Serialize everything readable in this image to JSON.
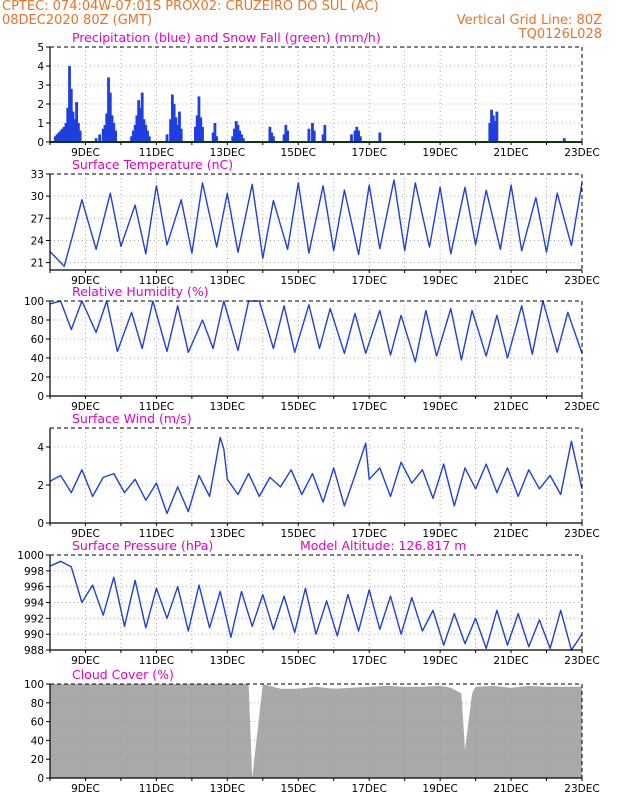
{
  "header": {
    "line1_left": "CPTEC:  074:04W-07:01S  PROX02: CRUZEIRO DO SUL (AC)",
    "line2_left": "08DEC2020 80Z (GMT)",
    "line2_right": "Vertical Grid Line: 80Z",
    "line3_right": "TQ0126L028"
  },
  "colors": {
    "header": "#e8732a",
    "title": "#e600c8",
    "line": "#1f3fe0",
    "snow": "#1a9a1a",
    "cloud": "#a9a9a9",
    "axis": "#000000",
    "grid": "#9a9a9a"
  },
  "x_axis": {
    "start_day": 8,
    "end_day": 23,
    "tick_labels": [
      "9DEC",
      "11DEC",
      "13DEC",
      "15DEC",
      "17DEC",
      "19DEC",
      "21DEC",
      "23DEC"
    ],
    "tick_days": [
      9,
      11,
      13,
      15,
      17,
      19,
      21,
      23
    ]
  },
  "chart_data": [
    {
      "type": "bar",
      "title": "Precipitation (blue) and Snow Fall (green) (mm/h)",
      "ylim": [
        0,
        5
      ],
      "yticks": [
        0,
        1,
        2,
        3,
        4,
        5
      ],
      "series": [
        {
          "name": "Precipitation",
          "x_day": [
            8.15,
            8.2,
            8.25,
            8.3,
            8.35,
            8.4,
            8.45,
            8.5,
            8.55,
            8.6,
            8.65,
            8.7,
            8.75,
            8.8,
            8.85,
            9.3,
            9.4,
            9.5,
            9.55,
            9.6,
            9.65,
            9.7,
            9.75,
            9.8,
            9.85,
            10.3,
            10.35,
            10.4,
            10.45,
            10.5,
            10.55,
            10.6,
            10.65,
            10.7,
            10.75,
            10.8,
            11.3,
            11.4,
            11.45,
            11.5,
            11.55,
            11.6,
            11.65,
            11.7,
            12.1,
            12.15,
            12.2,
            12.25,
            12.3,
            12.6,
            12.65,
            12.7,
            13.15,
            13.2,
            13.25,
            13.3,
            13.35,
            13.4,
            13.45,
            14.2,
            14.25,
            14.3,
            14.6,
            14.65,
            14.7,
            15.3,
            15.4,
            15.45,
            15.7,
            15.75,
            16.5,
            16.6,
            16.65,
            16.7,
            16.75,
            17.3,
            20.4,
            20.45,
            20.5,
            20.55,
            20.6,
            22.5
          ],
          "values": [
            0.3,
            0.4,
            0.5,
            0.6,
            0.7,
            0.8,
            1.0,
            1.8,
            4.0,
            2.8,
            1.6,
            1.2,
            2.1,
            1.0,
            0.6,
            0.2,
            0.4,
            0.7,
            0.9,
            1.5,
            3.4,
            2.6,
            1.4,
            1.0,
            0.6,
            0.3,
            0.6,
            0.9,
            1.4,
            2.2,
            1.8,
            2.6,
            1.2,
            0.9,
            0.6,
            0.3,
            0.4,
            1.2,
            2.5,
            2.0,
            1.3,
            0.9,
            1.6,
            0.7,
            0.8,
            1.4,
            2.4,
            1.3,
            0.8,
            0.5,
            1.0,
            0.3,
            0.3,
            0.7,
            1.1,
            0.9,
            0.6,
            0.4,
            0.2,
            0.8,
            0.5,
            0.3,
            0.4,
            0.9,
            0.6,
            0.7,
            1.0,
            0.6,
            0.4,
            0.9,
            0.4,
            0.6,
            0.8,
            0.6,
            0.3,
            0.5,
            1.0,
            1.7,
            1.4,
            1.1,
            1.6,
            0.2
          ]
        },
        {
          "name": "Snow Fall",
          "x_day": [
            8.0,
            23.0
          ],
          "values": [
            0,
            0
          ]
        }
      ]
    },
    {
      "type": "line",
      "title": "Surface Temperature (nC)",
      "ylim": [
        20,
        33
      ],
      "yticks": [
        21,
        24,
        27,
        30,
        33
      ],
      "x_day": [
        8.0,
        8.2,
        8.4,
        8.6,
        8.9,
        9.3,
        9.7,
        10.0,
        10.4,
        10.7,
        11.0,
        11.3,
        11.7,
        12.0,
        12.3,
        12.7,
        13.0,
        13.3,
        13.7,
        14.0,
        14.3,
        14.7,
        15.0,
        15.3,
        15.7,
        16.0,
        16.3,
        16.7,
        17.0,
        17.3,
        17.7,
        18.0,
        18.3,
        18.7,
        19.0,
        19.3,
        19.7,
        20.0,
        20.3,
        20.7,
        21.0,
        21.3,
        21.7,
        22.0,
        22.3,
        22.7,
        23.0
      ],
      "values": [
        22.5,
        21.5,
        20.5,
        24,
        29.5,
        22.8,
        30.4,
        23.2,
        28.8,
        22.2,
        31.4,
        23.4,
        29.5,
        22.3,
        31.8,
        23.1,
        30.4,
        22.4,
        31.6,
        21.6,
        29.4,
        22.8,
        31.8,
        22.3,
        31.4,
        22.6,
        30.8,
        22.1,
        31.5,
        22.9,
        32.2,
        22.6,
        31.8,
        23.1,
        31.2,
        22.2,
        31.2,
        23.4,
        30.8,
        22.8,
        31.5,
        22.6,
        29.8,
        22.4,
        30.4,
        23.3,
        31.8
      ]
    },
    {
      "type": "line",
      "title": "Relative Humidity (%)",
      "ylim": [
        0,
        100
      ],
      "yticks": [
        0,
        20,
        40,
        60,
        80,
        100
      ],
      "x_day": [
        8.0,
        8.3,
        8.6,
        8.9,
        9.3,
        9.6,
        9.9,
        10.3,
        10.6,
        10.9,
        11.3,
        11.6,
        11.9,
        12.3,
        12.6,
        12.9,
        13.3,
        13.6,
        13.9,
        14.3,
        14.6,
        14.9,
        15.3,
        15.6,
        15.9,
        16.3,
        16.6,
        16.9,
        17.3,
        17.6,
        17.9,
        18.3,
        18.6,
        18.9,
        19.3,
        19.6,
        19.9,
        20.3,
        20.6,
        20.9,
        21.3,
        21.6,
        21.9,
        22.3,
        22.6,
        23.0
      ],
      "values": [
        97,
        100,
        70,
        100,
        67,
        100,
        47,
        88,
        50,
        100,
        47,
        95,
        46,
        80,
        50,
        100,
        48,
        100,
        100,
        50,
        95,
        46,
        96,
        50,
        92,
        45,
        87,
        45,
        90,
        43,
        85,
        36,
        90,
        42,
        92,
        38,
        90,
        42,
        85,
        40,
        95,
        44,
        100,
        46,
        88,
        45
      ]
    },
    {
      "type": "line",
      "title": "Surface Wind (m/s)",
      "ylim": [
        0,
        5
      ],
      "yticks": [
        0,
        2,
        4
      ],
      "x_day": [
        8.0,
        8.3,
        8.6,
        8.9,
        9.2,
        9.5,
        9.8,
        10.1,
        10.4,
        10.7,
        11.0,
        11.3,
        11.6,
        11.9,
        12.2,
        12.5,
        12.8,
        12.9,
        13.0,
        13.3,
        13.6,
        13.9,
        14.2,
        14.5,
        14.8,
        15.1,
        15.4,
        15.7,
        16.0,
        16.3,
        16.6,
        16.9,
        17.0,
        17.3,
        17.6,
        17.9,
        18.2,
        18.5,
        18.8,
        19.1,
        19.4,
        19.7,
        20.0,
        20.3,
        20.6,
        20.9,
        21.2,
        21.5,
        21.8,
        22.1,
        22.4,
        22.7,
        23.0
      ],
      "values": [
        2.2,
        2.5,
        1.6,
        2.8,
        1.4,
        2.4,
        2.6,
        1.6,
        2.3,
        1.2,
        2.1,
        0.5,
        1.9,
        0.6,
        2.5,
        1.4,
        4.5,
        3.9,
        2.3,
        1.5,
        2.6,
        1.4,
        2.4,
        1.9,
        2.8,
        1.5,
        2.6,
        1.1,
        2.9,
        0.9,
        2.5,
        4.2,
        2.3,
        2.9,
        1.4,
        3.2,
        2.1,
        2.8,
        1.3,
        3.1,
        0.9,
        2.9,
        1.8,
        3.1,
        1.6,
        2.9,
        1.4,
        2.8,
        1.8,
        2.5,
        1.5,
        4.3,
        1.8
      ]
    },
    {
      "type": "line",
      "title": "Surface Pressure (hPa)",
      "subtitle": "Model Altitude: 126.817 m",
      "ylim": [
        988,
        1000
      ],
      "yticks": [
        988,
        990,
        992,
        994,
        996,
        998,
        1000
      ],
      "x_day": [
        8.0,
        8.3,
        8.6,
        8.9,
        9.2,
        9.5,
        9.8,
        10.1,
        10.4,
        10.7,
        11.0,
        11.3,
        11.6,
        11.9,
        12.2,
        12.5,
        12.8,
        13.1,
        13.4,
        13.7,
        14.0,
        14.3,
        14.6,
        14.9,
        15.2,
        15.5,
        15.8,
        16.1,
        16.4,
        16.7,
        17.0,
        17.3,
        17.6,
        17.9,
        18.2,
        18.5,
        18.8,
        19.1,
        19.4,
        19.7,
        20.0,
        20.3,
        20.6,
        20.9,
        21.2,
        21.5,
        21.8,
        22.1,
        22.4,
        22.7,
        23.0
      ],
      "values": [
        998.6,
        999.2,
        998.5,
        994.0,
        996.2,
        992.4,
        997.2,
        991.0,
        996.8,
        990.8,
        995.8,
        992.0,
        996.0,
        990.4,
        996.2,
        990.8,
        995.4,
        989.6,
        995.4,
        991.0,
        995.0,
        990.6,
        994.8,
        990.2,
        995.8,
        990.0,
        994.2,
        989.8,
        995.0,
        990.4,
        995.6,
        990.6,
        994.8,
        990.0,
        994.6,
        990.4,
        993.0,
        988.6,
        992.6,
        988.8,
        992.0,
        988.2,
        993.0,
        988.6,
        992.6,
        988.4,
        991.8,
        988.2,
        993.0,
        988.0,
        990.0
      ]
    },
    {
      "type": "area",
      "title": "Cloud Cover (%)",
      "ylim": [
        0,
        100
      ],
      "yticks": [
        0,
        20,
        40,
        60,
        80,
        100
      ],
      "x_day": [
        8.0,
        9.0,
        10.0,
        11.0,
        12.0,
        13.0,
        13.6,
        13.7,
        14.0,
        14.5,
        15.0,
        15.5,
        16.0,
        16.5,
        17.0,
        17.5,
        18.0,
        18.5,
        19.0,
        19.3,
        19.6,
        19.7,
        19.9,
        20.0,
        20.5,
        21.0,
        21.5,
        22.0,
        22.5,
        23.0
      ],
      "values": [
        100,
        100,
        100,
        100,
        100,
        100,
        100,
        0,
        100,
        95,
        95,
        97,
        95,
        96,
        97,
        98,
        97,
        97,
        98,
        96,
        90,
        30,
        90,
        97,
        98,
        96,
        98,
        97,
        97,
        97
      ]
    }
  ]
}
